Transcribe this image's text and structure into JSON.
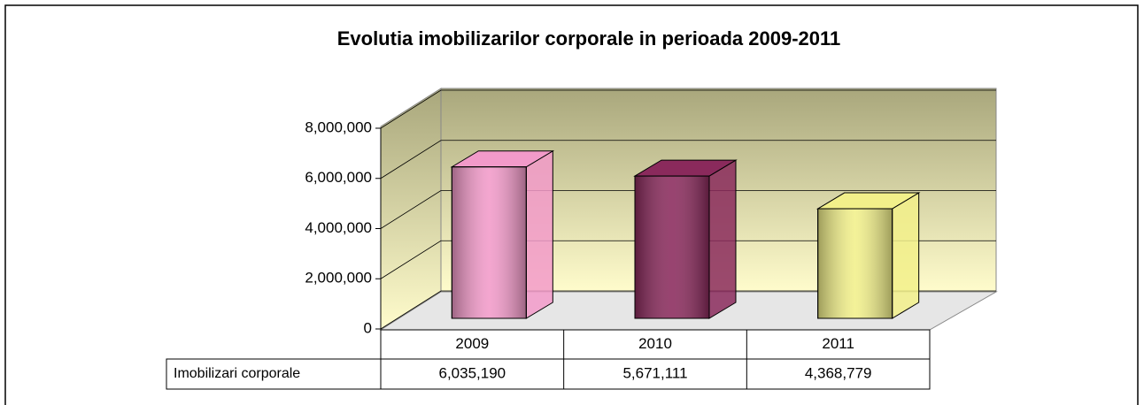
{
  "chart_data": {
    "type": "bar3d",
    "title": "Evolutia imobilizarilor corporale in perioada 2009-2011",
    "categories": [
      "2009",
      "2010",
      "2011"
    ],
    "series": [
      {
        "name": "Imobilizari corporale",
        "values": [
          6035190,
          5671111,
          4368779
        ],
        "value_labels": [
          "6,035,190",
          "5,671,111",
          "4,368,779"
        ],
        "colors": [
          "#f29ac9",
          "#8a2a5c",
          "#f2f08a"
        ]
      }
    ],
    "ylim": [
      0,
      8000000
    ],
    "yticks": [
      0,
      {
        "value": 2000000,
        "label": "2,000,000"
      },
      {
        "value": 4000000,
        "label": "4,000,000"
      },
      {
        "value": 6000000,
        "label": "6,000,000"
      },
      {
        "value": 8000000,
        "label": "8,000,000"
      }
    ],
    "grid": true,
    "data_table": true
  }
}
